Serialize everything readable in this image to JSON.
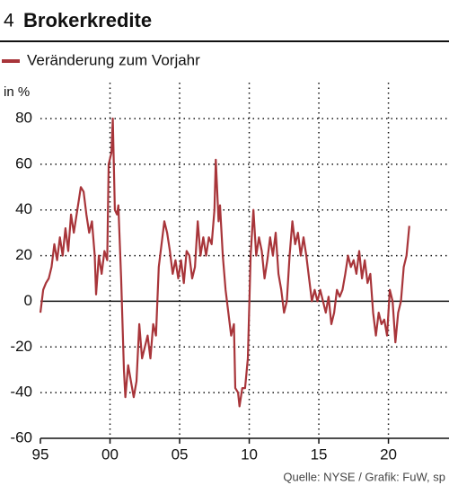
{
  "chart_data": {
    "type": "line",
    "number": "4",
    "title": "Brokerkredite",
    "y_label": "in %",
    "source": "Quelle: NYSE / Grafik: FuW, sp",
    "x": [
      1995.0,
      1995.2,
      1995.4,
      1995.6,
      1995.8,
      1996.0,
      1996.2,
      1996.4,
      1996.6,
      1996.8,
      1997.0,
      1997.2,
      1997.4,
      1997.7,
      1997.9,
      1998.1,
      1998.3,
      1998.5,
      1998.7,
      1998.9,
      1999.0,
      1999.2,
      1999.4,
      1999.6,
      1999.8,
      1999.9,
      2000.1,
      2000.2,
      2000.35,
      2000.5,
      2000.6,
      2000.8,
      2001.0,
      2001.1,
      2001.3,
      2001.5,
      2001.7,
      2001.9,
      2002.1,
      2002.3,
      2002.5,
      2002.7,
      2002.9,
      2003.1,
      2003.3,
      2003.5,
      2003.7,
      2003.9,
      2004.1,
      2004.3,
      2004.5,
      2004.7,
      2004.9,
      2005.1,
      2005.3,
      2005.5,
      2005.7,
      2005.9,
      2006.1,
      2006.3,
      2006.5,
      2006.7,
      2006.9,
      2007.1,
      2007.3,
      2007.5,
      2007.6,
      2007.8,
      2007.9,
      2008.1,
      2008.3,
      2008.5,
      2008.7,
      2008.9,
      2009.0,
      2009.2,
      2009.3,
      2009.5,
      2009.7,
      2009.9,
      2010.1,
      2010.3,
      2010.5,
      2010.7,
      2010.9,
      2011.1,
      2011.3,
      2011.5,
      2011.7,
      2011.9,
      2012.1,
      2012.3,
      2012.5,
      2012.7,
      2012.9,
      2013.1,
      2013.3,
      2013.5,
      2013.7,
      2013.9,
      2014.1,
      2014.3,
      2014.5,
      2014.7,
      2014.9,
      2015.1,
      2015.3,
      2015.5,
      2015.7,
      2015.9,
      2016.1,
      2016.3,
      2016.5,
      2016.7,
      2016.9,
      2017.1,
      2017.3,
      2017.5,
      2017.7,
      2017.9,
      2018.1,
      2018.3,
      2018.5,
      2018.7,
      2018.9,
      2019.1,
      2019.3,
      2019.5,
      2019.7,
      2019.9,
      2020.1,
      2020.3,
      2020.5,
      2020.7,
      2020.9,
      2021.1,
      2021.3,
      2021.5
    ],
    "series": [
      {
        "name": "Veränderung zum Vorjahr",
        "color": "#a8353a",
        "values": [
          -5,
          5,
          8,
          10,
          15,
          25,
          18,
          28,
          20,
          32,
          22,
          38,
          30,
          42,
          50,
          48,
          38,
          30,
          35,
          20,
          3,
          20,
          12,
          22,
          18,
          60,
          65,
          80,
          40,
          38,
          42,
          10,
          -30,
          -42,
          -28,
          -35,
          -42,
          -35,
          -10,
          -25,
          -20,
          -15,
          -25,
          -10,
          -15,
          15,
          25,
          35,
          30,
          22,
          12,
          18,
          10,
          18,
          8,
          22,
          20,
          10,
          15,
          35,
          20,
          28,
          20,
          28,
          25,
          40,
          62,
          35,
          42,
          20,
          5,
          -5,
          -15,
          -10,
          -38,
          -40,
          -46,
          -38,
          -38,
          -25,
          20,
          40,
          20,
          28,
          22,
          10,
          18,
          28,
          20,
          30,
          12,
          5,
          -5,
          0,
          20,
          35,
          25,
          30,
          20,
          28,
          20,
          10,
          0,
          5,
          0,
          5,
          0,
          -5,
          2,
          -10,
          -5,
          5,
          2,
          5,
          12,
          20,
          15,
          18,
          12,
          22,
          10,
          18,
          8,
          12,
          -5,
          -15,
          -5,
          -10,
          -8,
          -15,
          5,
          0,
          -18,
          -5,
          0,
          15,
          20,
          33
        ]
      }
    ],
    "xlim": [
      1995,
      2024.35
    ],
    "xticks": [
      {
        "value": 1995,
        "label": "95"
      },
      {
        "value": 2000,
        "label": "00"
      },
      {
        "value": 2005,
        "label": "05"
      },
      {
        "value": 2010,
        "label": "10"
      },
      {
        "value": 2015,
        "label": "15"
      },
      {
        "value": 2020,
        "label": "20"
      }
    ],
    "ylim": [
      -60,
      80
    ],
    "yticks": [
      -60,
      -40,
      -20,
      0,
      20,
      40,
      60,
      80
    ],
    "grid": true
  }
}
